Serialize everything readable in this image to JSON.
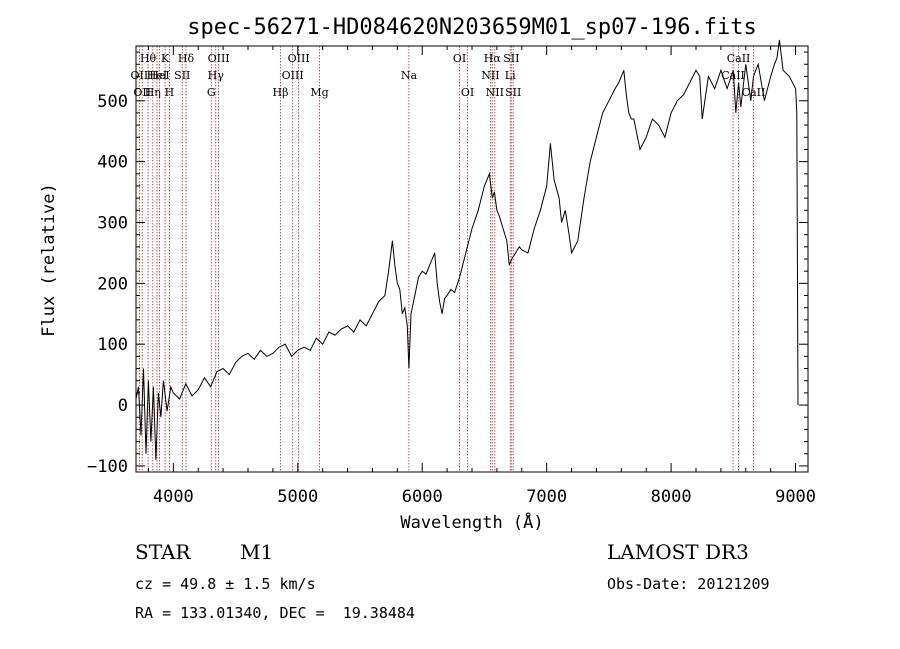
{
  "chart_data": {
    "type": "line",
    "title": "spec-56271-HD084620N203659M01_sp07-196.fits",
    "xlabel": "Wavelength (Å)",
    "ylabel": "Flux (relative)",
    "xlim": [
      3700,
      9100
    ],
    "ylim": [
      -110,
      590
    ],
    "x_ticks": [
      4000,
      5000,
      6000,
      7000,
      8000,
      9000
    ],
    "y_ticks": [
      -100,
      0,
      100,
      200,
      300,
      400,
      500
    ],
    "x_tick_labels": [
      "4000",
      "5000",
      "6000",
      "7000",
      "8000",
      "9000"
    ],
    "y_tick_labels": [
      "−100",
      "0",
      "100",
      "200",
      "300",
      "400",
      "500"
    ],
    "series": [
      {
        "name": "spectrum",
        "x": [
          3700,
          3720,
          3740,
          3760,
          3780,
          3800,
          3820,
          3840,
          3860,
          3880,
          3900,
          3920,
          3950,
          3980,
          4000,
          4050,
          4100,
          4150,
          4200,
          4250,
          4300,
          4350,
          4400,
          4450,
          4500,
          4550,
          4600,
          4650,
          4700,
          4750,
          4800,
          4850,
          4900,
          4950,
          5000,
          5050,
          5100,
          5150,
          5200,
          5250,
          5300,
          5350,
          5400,
          5450,
          5500,
          5550,
          5600,
          5650,
          5700,
          5730,
          5760,
          5780,
          5800,
          5820,
          5840,
          5860,
          5880,
          5893,
          5910,
          5940,
          5970,
          6000,
          6030,
          6060,
          6100,
          6120,
          6140,
          6160,
          6180,
          6200,
          6230,
          6260,
          6300,
          6350,
          6400,
          6450,
          6500,
          6540,
          6563,
          6580,
          6600,
          6620,
          6650,
          6680,
          6700,
          6720,
          6750,
          6780,
          6800,
          6850,
          6900,
          6950,
          7000,
          7030,
          7060,
          7100,
          7120,
          7150,
          7180,
          7200,
          7250,
          7300,
          7350,
          7400,
          7450,
          7500,
          7550,
          7580,
          7600,
          7620,
          7640,
          7660,
          7680,
          7700,
          7750,
          7800,
          7850,
          7900,
          7950,
          8000,
          8050,
          8100,
          8150,
          8200,
          8230,
          8250,
          8300,
          8350,
          8400,
          8450,
          8500,
          8520,
          8542,
          8560,
          8600,
          8640,
          8662,
          8680,
          8700,
          8750,
          8800,
          8830,
          8850,
          8870,
          8900,
          8950,
          9000,
          9010,
          9020
        ],
        "values": [
          10,
          30,
          -50,
          60,
          -80,
          40,
          -60,
          30,
          -90,
          20,
          -20,
          40,
          -10,
          30,
          20,
          10,
          35,
          15,
          25,
          45,
          30,
          55,
          60,
          50,
          70,
          80,
          85,
          75,
          90,
          80,
          85,
          95,
          100,
          80,
          90,
          95,
          90,
          110,
          100,
          120,
          115,
          125,
          130,
          120,
          140,
          130,
          150,
          170,
          180,
          220,
          270,
          230,
          200,
          190,
          150,
          160,
          130,
          60,
          150,
          180,
          210,
          220,
          215,
          230,
          250,
          200,
          170,
          150,
          175,
          180,
          190,
          185,
          210,
          250,
          290,
          320,
          360,
          380,
          340,
          350,
          320,
          310,
          290,
          270,
          230,
          240,
          250,
          260,
          255,
          250,
          290,
          320,
          360,
          430,
          370,
          340,
          300,
          320,
          280,
          250,
          270,
          340,
          400,
          440,
          480,
          500,
          520,
          530,
          540,
          550,
          510,
          480,
          470,
          470,
          420,
          440,
          470,
          460,
          440,
          480,
          500,
          510,
          530,
          550,
          540,
          470,
          540,
          520,
          550,
          520,
          550,
          480,
          530,
          490,
          560,
          500,
          540,
          550,
          560,
          500,
          540,
          560,
          570,
          600,
          550,
          540,
          520,
          480,
          0
        ]
      }
    ],
    "lines": [
      {
        "x": 3727,
        "label": "OII",
        "row": 2
      },
      {
        "x": 3750,
        "label": "OII",
        "row": 3
      },
      {
        "x": 3797,
        "label": "Hθ",
        "row": 1
      },
      {
        "x": 3835,
        "label": "Hη",
        "row": 3
      },
      {
        "x": 3869,
        "label": "HeI",
        "row": 2
      },
      {
        "x": 3889,
        "label": "HeI",
        "row": 2
      },
      {
        "x": 3934,
        "label": "K",
        "row": 1
      },
      {
        "x": 3969,
        "label": "H",
        "row": 3
      },
      {
        "x": 4072,
        "label": "SII",
        "row": 2
      },
      {
        "x": 4102,
        "label": "Hδ",
        "row": 1
      },
      {
        "x": 4305,
        "label": "G",
        "row": 3
      },
      {
        "x": 4341,
        "label": "Hγ",
        "row": 2
      },
      {
        "x": 4364,
        "label": "OIII",
        "row": 1
      },
      {
        "x": 4861,
        "label": "Hβ",
        "row": 3
      },
      {
        "x": 4959,
        "label": "OIII",
        "row": 2
      },
      {
        "x": 5007,
        "label": "OIII",
        "row": 1
      },
      {
        "x": 5175,
        "label": "Mg",
        "row": 3
      },
      {
        "x": 5893,
        "label": "Na",
        "row": 2
      },
      {
        "x": 6300,
        "label": "OI",
        "row": 1
      },
      {
        "x": 6364,
        "label": "OI",
        "row": 3
      },
      {
        "x": 6548,
        "label": "NII",
        "row": 2
      },
      {
        "x": 6563,
        "label": "Hα",
        "row": 1
      },
      {
        "x": 6583,
        "label": "NII",
        "row": 3
      },
      {
        "x": 6707,
        "label": "Li",
        "row": 2
      },
      {
        "x": 6716,
        "label": "SII",
        "row": 1
      },
      {
        "x": 6731,
        "label": "SII",
        "row": 3
      },
      {
        "x": 8498,
        "label": "CaII",
        "row": 2
      },
      {
        "x": 8542,
        "label": "CaII",
        "row": 1
      },
      {
        "x": 8662,
        "label": "CaII",
        "row": 3
      }
    ]
  },
  "info": {
    "class_label": "STAR",
    "subclass_label": "M1",
    "survey": "LAMOST DR3",
    "cz": "cz = 49.8 ± 1.5 km/s",
    "obs_date": "Obs-Date: 20121209",
    "coords": "RA = 133.01340, DEC =  19.38484"
  },
  "colors": {
    "line_marker": "#b03030",
    "spectrum": "#000000",
    "axes": "#000000"
  }
}
